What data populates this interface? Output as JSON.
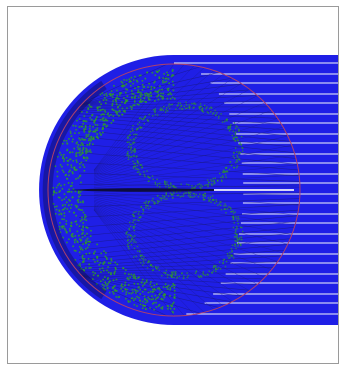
{
  "figure": {
    "colors": {
      "background": "#ffffff",
      "frame": "#9a9a9a",
      "incident_rays": "#1f1fe6",
      "light_rays": "#e9ecf9",
      "interior_mesh": "#1a1a80",
      "scattered_rays": "#2f9a2a",
      "sphere_outline": "#b0406a",
      "caustic": "#0a0a2a"
    },
    "elements": [
      "incident-ray-bundle",
      "sphere-outline",
      "refracted-ray-mesh",
      "scattered-ray-halo",
      "caustic-line"
    ]
  }
}
